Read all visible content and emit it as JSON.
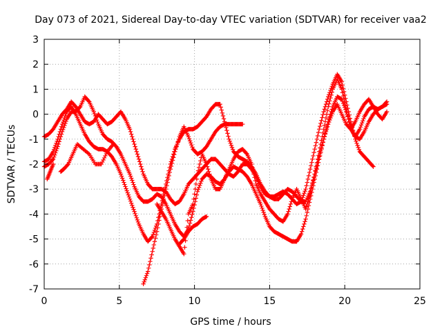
{
  "chart_data": {
    "type": "scatter",
    "title": "Day 073 of 2021, Sidereal Day-to-day VTEC variation (SDTVAR) for receiver vaa2",
    "xlabel": "GPS time / hours",
    "ylabel": "SDTVAR / TECUs",
    "xlim": [
      0,
      25
    ],
    "ylim": [
      -7,
      3
    ],
    "xticks": [
      "0",
      "5",
      "10",
      "15",
      "20",
      "25"
    ],
    "yticks": [
      "-7",
      "-6",
      "-5",
      "-4",
      "-3",
      "-2",
      "-1",
      "0",
      "1",
      "2",
      "3"
    ],
    "grid": true,
    "marker": "+",
    "color": "#ff0000",
    "series": [
      {
        "x": [
          0.0,
          0.3,
          0.6,
          0.9,
          1.2,
          1.5,
          1.8,
          2.1,
          2.4,
          2.7,
          3.0,
          3.3,
          3.6,
          3.9,
          4.2,
          4.5,
          4.8,
          5.1,
          5.4,
          5.7,
          6.0,
          6.3,
          6.6,
          6.9,
          7.2,
          7.5,
          7.8,
          8.1,
          8.4,
          8.7,
          9.0,
          9.3,
          9.6,
          9.9,
          10.2,
          10.5,
          10.8,
          11.1,
          11.4,
          11.7,
          12.0,
          12.3,
          12.6,
          12.9,
          13.2,
          13.5,
          13.8,
          14.1,
          14.4,
          14.7,
          15.0,
          15.3,
          15.6,
          15.9,
          16.2,
          16.5,
          16.8,
          17.1,
          17.4,
          17.7,
          18.0,
          18.3,
          18.6,
          18.9,
          19.2,
          19.5,
          19.8,
          20.1,
          20.4,
          20.7,
          21.0,
          21.3,
          21.6,
          21.9,
          22.2,
          22.5,
          22.8
        ],
        "y": [
          -0.9,
          -0.8,
          -0.6,
          -0.3,
          0.0,
          0.2,
          0.5,
          0.3,
          0.0,
          -0.3,
          -0.4,
          -0.3,
          0.0,
          -0.2,
          -0.4,
          -0.3,
          -0.1,
          0.1,
          -0.2,
          -0.6,
          -1.2,
          -1.8,
          -2.4,
          -2.8,
          -3.0,
          -3.0,
          -3.0,
          -3.1,
          -3.4,
          -3.6,
          -3.5,
          -3.2,
          -2.8,
          -2.6,
          -2.4,
          -2.2,
          -2.0,
          -1.8,
          -1.8,
          -2.0,
          -2.2,
          -2.4,
          -2.5,
          -2.3,
          -2.0,
          -2.0,
          -2.2,
          -2.5,
          -2.9,
          -3.2,
          -3.3,
          -3.4,
          -3.4,
          -3.2,
          -3.0,
          -3.1,
          -3.3,
          -3.5,
          -3.5,
          -3.1,
          -2.4,
          -1.5,
          -0.6,
          0.3,
          1.0,
          1.4,
          1.0,
          0.2,
          -0.6,
          -0.9,
          -0.6,
          -0.1,
          0.2,
          0.3,
          0.2,
          0.3,
          0.4
        ]
      },
      {
        "x": [
          0.0,
          0.3,
          0.6,
          0.9,
          1.2,
          1.5,
          1.8,
          2.1,
          2.4,
          2.7,
          3.0,
          3.3,
          3.6,
          3.9,
          4.2,
          4.5,
          4.8,
          5.1,
          5.4,
          5.7,
          6.0,
          6.3,
          6.6,
          6.9,
          7.2,
          7.5,
          7.8,
          8.1,
          8.4,
          8.7,
          9.0,
          9.3,
          9.6,
          9.9,
          10.2,
          10.5,
          10.8,
          11.1,
          11.4,
          11.7,
          12.0,
          12.3,
          12.6,
          12.9,
          13.2,
          13.5,
          13.8,
          14.1,
          14.4,
          14.7,
          15.0,
          15.3,
          15.6,
          15.9,
          16.2,
          16.5,
          16.8,
          17.1,
          17.4,
          17.7,
          18.0,
          18.3,
          18.6,
          18.9,
          19.2,
          19.5,
          19.8,
          20.1,
          20.4,
          20.7,
          21.0,
          21.3,
          21.6,
          21.9,
          22.2,
          22.5,
          22.8
        ],
        "y": [
          -2.1,
          -2.0,
          -1.8,
          -1.3,
          -0.7,
          -0.2,
          0.1,
          0.1,
          0.3,
          0.7,
          0.5,
          0.1,
          -0.4,
          -0.8,
          -1.0,
          -1.1,
          -1.3,
          -1.6,
          -2.0,
          -2.4,
          -2.9,
          -3.3,
          -3.5,
          -3.5,
          -3.4,
          -3.2,
          -3.3,
          -3.6,
          -4.0,
          -4.4,
          -4.7,
          -4.9,
          -4.6,
          -3.9,
          -3.1,
          -2.6,
          -2.4,
          -2.5,
          -2.7,
          -2.8,
          -2.6,
          -2.3,
          -2.1,
          -2.2,
          -2.3,
          -2.5,
          -2.8,
          -3.2,
          -3.6,
          -4.1,
          -4.5,
          -4.7,
          -4.8,
          -4.9,
          -5.0,
          -5.1,
          -5.1,
          -4.8,
          -4.2,
          -3.4,
          -2.6,
          -1.8,
          -1.0,
          -0.3,
          0.3,
          0.7,
          0.6,
          0.1,
          -0.5,
          -0.9,
          -1.0,
          -0.7,
          -0.3,
          0.0,
          0.2,
          0.3,
          0.5
        ]
      },
      {
        "x": [
          0.0,
          0.3,
          0.6,
          0.9,
          1.2,
          1.5,
          1.8,
          2.1,
          2.4,
          2.7,
          3.0,
          3.3,
          3.6,
          3.9,
          4.2,
          4.5,
          4.8,
          5.1,
          5.4,
          5.7,
          6.0,
          6.3,
          6.6,
          6.9,
          7.2,
          7.5,
          7.8,
          8.1,
          8.4,
          8.7,
          9.0,
          9.3,
          9.6,
          9.9,
          10.2,
          10.5,
          10.8,
          11.1,
          11.4,
          11.7,
          12.0,
          12.3,
          12.6,
          12.9,
          13.2,
          13.5,
          13.8,
          14.1,
          14.4,
          14.7,
          15.0,
          15.3,
          15.6,
          15.9,
          16.2,
          16.5,
          16.8,
          17.1,
          17.4,
          17.7,
          18.0,
          18.3,
          18.6,
          18.9,
          19.2,
          19.5,
          19.8,
          20.1,
          20.4,
          20.7,
          21.0,
          21.3,
          21.6,
          21.9
        ],
        "y": [
          -1.9,
          -1.8,
          -1.5,
          -1.0,
          -0.4,
          0.1,
          0.3,
          0.0,
          -0.4,
          -0.8,
          -1.1,
          -1.3,
          -1.4,
          -1.4,
          -1.5,
          -1.7,
          -2.0,
          -2.4,
          -2.9,
          -3.4,
          -3.9,
          -4.4,
          -4.8,
          -5.1,
          -4.9,
          -4.4,
          -3.6,
          -2.8,
          -2.0,
          -1.4,
          -1.0,
          -0.7,
          -0.6,
          -0.6,
          -0.5,
          -0.3,
          -0.1,
          0.2,
          0.4,
          0.4,
          -0.3,
          -1.0,
          -1.5,
          -1.7,
          -1.8,
          -1.9,
          -2.1,
          -2.4,
          -2.8,
          -3.1,
          -3.3,
          -3.3,
          -3.2,
          -3.1,
          -3.2,
          -3.4,
          -3.6,
          -3.5,
          -3.0,
          -2.2,
          -1.4,
          -0.6,
          0.1,
          0.7,
          1.2,
          1.6,
          1.3,
          0.5,
          -0.3,
          -1.0,
          -1.5,
          -1.7,
          -1.9,
          -2.1
        ]
      },
      {
        "x": [
          6.6,
          6.9,
          7.2,
          7.5,
          7.8,
          8.1,
          8.4,
          8.7,
          9.0,
          9.3,
          9.6,
          9.9,
          10.2,
          10.5,
          10.8,
          11.1,
          11.4,
          11.7,
          12.0,
          12.3,
          12.6,
          12.9,
          13.2
        ],
        "y": [
          -6.8,
          -6.3,
          -5.5,
          -4.7,
          -3.8,
          -3.0,
          -2.2,
          -1.5,
          -0.9,
          -0.5,
          -0.9,
          -1.4,
          -1.6,
          -1.5,
          -1.3,
          -1.0,
          -0.7,
          -0.5,
          -0.4,
          -0.4,
          -0.4,
          -0.4,
          -0.4
        ]
      },
      {
        "x": [
          7.5,
          7.8,
          8.1,
          8.4,
          8.7,
          9.0,
          9.3,
          9.6,
          9.9,
          10.2,
          10.5,
          10.8,
          11.1,
          11.4,
          11.7,
          12.0,
          12.3,
          12.6,
          12.9,
          13.2,
          13.5,
          13.8,
          14.1,
          14.4,
          14.7,
          15.0,
          15.3,
          15.6,
          15.9,
          16.2,
          16.5,
          16.8,
          17.1,
          17.4,
          17.7,
          18.0,
          18.3,
          18.6,
          18.9,
          19.2,
          19.5,
          19.8,
          20.1,
          20.4,
          20.7,
          21.0,
          21.3,
          21.6,
          21.9,
          22.2,
          22.5,
          22.8
        ],
        "y": [
          -3.6,
          -3.9,
          -4.2,
          -4.6,
          -5.0,
          -5.3,
          -5.6,
          -4.0,
          -3.6,
          -2.4,
          -1.6,
          -2.0,
          -2.6,
          -3.0,
          -3.0,
          -2.6,
          -2.2,
          -1.8,
          -1.5,
          -1.4,
          -1.6,
          -2.0,
          -2.8,
          -3.2,
          -3.5,
          -3.8,
          -4.0,
          -4.2,
          -4.3,
          -4.0,
          -3.4,
          -3.0,
          -3.4,
          -3.8,
          -3.2,
          -2.4,
          -1.7,
          -1.0,
          -0.4,
          0.1,
          0.4,
          0.0,
          -0.4,
          -0.6,
          -0.3,
          0.1,
          0.4,
          0.6,
          0.3,
          0.0,
          -0.2,
          0.1
        ]
      },
      {
        "x": [
          9.0,
          9.3,
          9.6,
          9.9,
          10.2,
          10.5,
          10.8
        ],
        "y": [
          -5.2,
          -5.0,
          -4.7,
          -4.5,
          -4.4,
          -4.2,
          -4.1
        ]
      },
      {
        "x": [
          1.1,
          1.3,
          1.6,
          1.9,
          2.2,
          2.6,
          3.0,
          3.4,
          3.8,
          4.2,
          4.6
        ],
        "y": [
          -2.3,
          -2.2,
          -2.0,
          -1.6,
          -1.2,
          -1.4,
          -1.6,
          -2.0,
          -2.0,
          -1.5,
          -1.2
        ]
      },
      {
        "x": [
          0.2,
          0.4,
          0.6
        ],
        "y": [
          -2.6,
          -2.3,
          -2.0
        ]
      }
    ]
  }
}
